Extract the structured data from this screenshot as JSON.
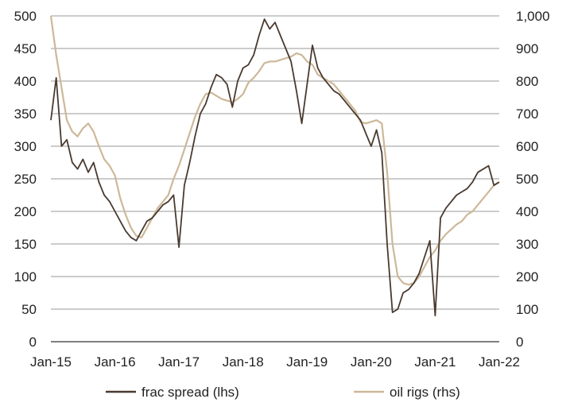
{
  "chart_data": {
    "type": "line",
    "x_unit": "month",
    "x_ticks": [
      "Jan-15",
      "Jan-16",
      "Jan-17",
      "Jan-18",
      "Jan-19",
      "Jan-20",
      "Jan-21",
      "Jan-22"
    ],
    "xlim": [
      "2015-01",
      "2022-01"
    ],
    "y_left": {
      "ylim": [
        0,
        500
      ],
      "ticks": [
        "0",
        "50",
        "100",
        "150",
        "200",
        "250",
        "300",
        "350",
        "400",
        "450",
        "500"
      ]
    },
    "y_right": {
      "ylim": [
        0,
        1000
      ],
      "ticks": [
        "0",
        "100",
        "200",
        "300",
        "400",
        "500",
        "600",
        "700",
        "800",
        "900",
        "1,000"
      ]
    },
    "grid": "horizontal",
    "legend_position": "bottom",
    "series": [
      {
        "name": "frac spread (lhs)",
        "axis": "left",
        "color": "#4a3a30",
        "points": [
          [
            "2015-01",
            340
          ],
          [
            "2015-02",
            405
          ],
          [
            "2015-03",
            300
          ],
          [
            "2015-04",
            310
          ],
          [
            "2015-05",
            275
          ],
          [
            "2015-06",
            265
          ],
          [
            "2015-07",
            280
          ],
          [
            "2015-08",
            260
          ],
          [
            "2015-09",
            275
          ],
          [
            "2015-10",
            245
          ],
          [
            "2015-11",
            225
          ],
          [
            "2015-12",
            215
          ],
          [
            "2016-01",
            200
          ],
          [
            "2016-02",
            185
          ],
          [
            "2016-03",
            170
          ],
          [
            "2016-04",
            160
          ],
          [
            "2016-05",
            155
          ],
          [
            "2016-06",
            170
          ],
          [
            "2016-07",
            185
          ],
          [
            "2016-08",
            190
          ],
          [
            "2016-09",
            200
          ],
          [
            "2016-10",
            210
          ],
          [
            "2016-11",
            215
          ],
          [
            "2016-12",
            225
          ],
          [
            "2017-01",
            145
          ],
          [
            "2017-02",
            240
          ],
          [
            "2017-03",
            275
          ],
          [
            "2017-04",
            315
          ],
          [
            "2017-05",
            350
          ],
          [
            "2017-06",
            365
          ],
          [
            "2017-07",
            390
          ],
          [
            "2017-08",
            410
          ],
          [
            "2017-09",
            405
          ],
          [
            "2017-10",
            395
          ],
          [
            "2017-11",
            360
          ],
          [
            "2017-12",
            400
          ],
          [
            "2018-01",
            420
          ],
          [
            "2018-02",
            425
          ],
          [
            "2018-03",
            440
          ],
          [
            "2018-04",
            470
          ],
          [
            "2018-05",
            495
          ],
          [
            "2018-06",
            480
          ],
          [
            "2018-07",
            490
          ],
          [
            "2018-08",
            470
          ],
          [
            "2018-09",
            450
          ],
          [
            "2018-10",
            430
          ],
          [
            "2018-11",
            385
          ],
          [
            "2018-12",
            335
          ],
          [
            "2019-01",
            395
          ],
          [
            "2019-02",
            455
          ],
          [
            "2019-03",
            420
          ],
          [
            "2019-04",
            405
          ],
          [
            "2019-05",
            395
          ],
          [
            "2019-06",
            385
          ],
          [
            "2019-07",
            380
          ],
          [
            "2019-08",
            370
          ],
          [
            "2019-09",
            360
          ],
          [
            "2019-10",
            350
          ],
          [
            "2019-11",
            340
          ],
          [
            "2019-12",
            320
          ],
          [
            "2020-01",
            300
          ],
          [
            "2020-02",
            325
          ],
          [
            "2020-03",
            290
          ],
          [
            "2020-04",
            150
          ],
          [
            "2020-05",
            45
          ],
          [
            "2020-06",
            50
          ],
          [
            "2020-07",
            75
          ],
          [
            "2020-08",
            80
          ],
          [
            "2020-09",
            90
          ],
          [
            "2020-10",
            105
          ],
          [
            "2020-11",
            130
          ],
          [
            "2020-12",
            155
          ],
          [
            "2021-01",
            40
          ],
          [
            "2021-02",
            190
          ],
          [
            "2021-03",
            205
          ],
          [
            "2021-04",
            215
          ],
          [
            "2021-05",
            225
          ],
          [
            "2021-06",
            230
          ],
          [
            "2021-07",
            235
          ],
          [
            "2021-08",
            245
          ],
          [
            "2021-09",
            260
          ],
          [
            "2021-10",
            265
          ],
          [
            "2021-11",
            270
          ],
          [
            "2021-12",
            240
          ],
          [
            "2022-01",
            245
          ]
        ]
      },
      {
        "name": "oil rigs (rhs)",
        "axis": "right",
        "color": "#cdb899",
        "points": [
          [
            "2015-01",
            1000
          ],
          [
            "2015-02",
            880
          ],
          [
            "2015-03",
            780
          ],
          [
            "2015-04",
            680
          ],
          [
            "2015-05",
            645
          ],
          [
            "2015-06",
            630
          ],
          [
            "2015-07",
            655
          ],
          [
            "2015-08",
            670
          ],
          [
            "2015-09",
            645
          ],
          [
            "2015-10",
            600
          ],
          [
            "2015-11",
            560
          ],
          [
            "2015-12",
            540
          ],
          [
            "2016-01",
            510
          ],
          [
            "2016-02",
            440
          ],
          [
            "2016-03",
            390
          ],
          [
            "2016-04",
            350
          ],
          [
            "2016-05",
            325
          ],
          [
            "2016-06",
            320
          ],
          [
            "2016-07",
            350
          ],
          [
            "2016-08",
            380
          ],
          [
            "2016-09",
            410
          ],
          [
            "2016-10",
            430
          ],
          [
            "2016-11",
            450
          ],
          [
            "2016-12",
            500
          ],
          [
            "2017-01",
            540
          ],
          [
            "2017-02",
            590
          ],
          [
            "2017-03",
            640
          ],
          [
            "2017-04",
            690
          ],
          [
            "2017-05",
            730
          ],
          [
            "2017-06",
            760
          ],
          [
            "2017-07",
            765
          ],
          [
            "2017-08",
            755
          ],
          [
            "2017-09",
            745
          ],
          [
            "2017-10",
            740
          ],
          [
            "2017-11",
            735
          ],
          [
            "2017-12",
            745
          ],
          [
            "2018-01",
            760
          ],
          [
            "2018-02",
            795
          ],
          [
            "2018-03",
            810
          ],
          [
            "2018-04",
            830
          ],
          [
            "2018-05",
            855
          ],
          [
            "2018-06",
            860
          ],
          [
            "2018-07",
            860
          ],
          [
            "2018-08",
            865
          ],
          [
            "2018-09",
            870
          ],
          [
            "2018-10",
            875
          ],
          [
            "2018-11",
            885
          ],
          [
            "2018-12",
            880
          ],
          [
            "2019-01",
            860
          ],
          [
            "2019-02",
            850
          ],
          [
            "2019-03",
            820
          ],
          [
            "2019-04",
            810
          ],
          [
            "2019-05",
            800
          ],
          [
            "2019-06",
            790
          ],
          [
            "2019-07",
            770
          ],
          [
            "2019-08",
            750
          ],
          [
            "2019-09",
            730
          ],
          [
            "2019-10",
            710
          ],
          [
            "2019-11",
            675
          ],
          [
            "2019-12",
            670
          ],
          [
            "2020-01",
            675
          ],
          [
            "2020-02",
            680
          ],
          [
            "2020-03",
            670
          ],
          [
            "2020-04",
            520
          ],
          [
            "2020-05",
            300
          ],
          [
            "2020-06",
            200
          ],
          [
            "2020-07",
            180
          ],
          [
            "2020-08",
            175
          ],
          [
            "2020-09",
            180
          ],
          [
            "2020-10",
            200
          ],
          [
            "2020-11",
            230
          ],
          [
            "2020-12",
            260
          ],
          [
            "2021-01",
            280
          ],
          [
            "2021-02",
            310
          ],
          [
            "2021-03",
            330
          ],
          [
            "2021-04",
            345
          ],
          [
            "2021-05",
            360
          ],
          [
            "2021-06",
            370
          ],
          [
            "2021-07",
            390
          ],
          [
            "2021-08",
            400
          ],
          [
            "2021-09",
            420
          ],
          [
            "2021-10",
            440
          ],
          [
            "2021-11",
            460
          ],
          [
            "2021-12",
            480
          ],
          [
            "2022-01",
            490
          ]
        ]
      }
    ]
  }
}
